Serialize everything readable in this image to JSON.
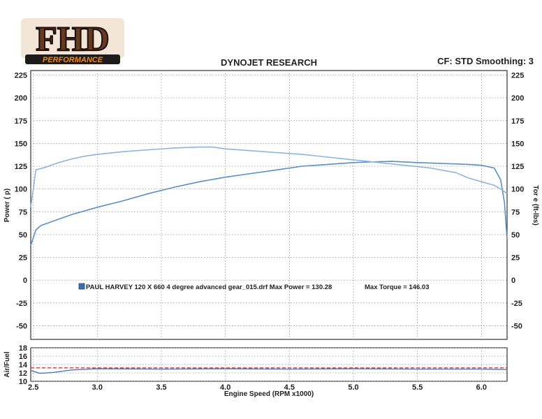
{
  "logo": {
    "main": "FHD",
    "sub": "PERFORMANCE"
  },
  "header": {
    "title": "DYNOJET RESEARCH",
    "settings": "CF: STD  Smoothing: 3"
  },
  "colors": {
    "power": "#5b8ec4",
    "torque": "#8fb4dc",
    "afr": "#4a7ab8",
    "afr_target": "#d23c3c",
    "grid": "#999999",
    "frame": "#333333"
  },
  "chart_data": [
    {
      "type": "line",
      "title": "DYNOJET RESEARCH",
      "xlabel": "",
      "ylabel_left": "Power (    p)",
      "ylabel_right": "Tor   e (ft-lbs)",
      "xlim": [
        2.48,
        6.2
      ],
      "ylim": [
        -65,
        230
      ],
      "y_ticks": [
        225,
        200,
        175,
        150,
        125,
        100,
        75,
        50,
        25,
        0,
        -25,
        -50
      ],
      "x_ticks_grid": [
        2.5,
        3.0,
        3.5,
        4.0,
        4.5,
        5.0,
        5.5,
        6.0
      ],
      "grid": true,
      "legend": {
        "text": "PAUL HARVEY 120 X 660 4 degree advanced gear_015.drf Max Power = 130.28",
        "max_torque": "Max Torque = 146.03"
      },
      "series": [
        {
          "role": "power",
          "x": [
            2.48,
            2.52,
            2.56,
            2.6,
            2.7,
            2.8,
            2.9,
            3.0,
            3.2,
            3.4,
            3.6,
            3.8,
            4.0,
            4.2,
            4.4,
            4.6,
            4.8,
            5.0,
            5.2,
            5.3,
            5.5,
            5.7,
            5.9,
            6.0,
            6.1,
            6.15,
            6.18,
            6.2
          ],
          "y": [
            38,
            55,
            60,
            62,
            67,
            72,
            76,
            80,
            87,
            95,
            102,
            108,
            113,
            117,
            121,
            125,
            127,
            129,
            130,
            130.28,
            129,
            128,
            127,
            126,
            123,
            110,
            85,
            45
          ]
        },
        {
          "role": "torque",
          "x": [
            2.48,
            2.5,
            2.52,
            2.6,
            2.7,
            2.8,
            2.9,
            3.0,
            3.2,
            3.4,
            3.6,
            3.8,
            3.9,
            4.0,
            4.2,
            4.4,
            4.6,
            4.8,
            5.0,
            5.2,
            5.4,
            5.6,
            5.8,
            5.9,
            6.0,
            6.1,
            6.15,
            6.2
          ],
          "y": [
            80,
            100,
            121,
            124,
            129,
            133,
            136,
            138,
            141,
            143,
            145,
            146,
            146.03,
            144,
            142,
            140,
            138,
            135,
            132,
            129,
            126,
            123,
            118,
            112,
            108,
            104,
            100,
            95
          ]
        }
      ]
    },
    {
      "type": "line",
      "xlabel": "Engine Speed (RPM x1000)",
      "ylabel": "Air/Fuel",
      "xlim": [
        2.48,
        6.2
      ],
      "ylim": [
        10,
        18
      ],
      "y_ticks": [
        18,
        16,
        14,
        12,
        10
      ],
      "x_ticks": [
        2.5,
        3.0,
        3.5,
        4.0,
        4.5,
        5.0,
        5.5,
        6.0
      ],
      "x_tick_labels": [
        "2.5",
        "3.0",
        "3.5",
        "4.0",
        "4.5",
        "5.0",
        "5.5",
        "6.0"
      ],
      "series": [
        {
          "role": "afr",
          "x": [
            2.48,
            2.55,
            2.65,
            2.8,
            3.0,
            3.5,
            4.0,
            4.5,
            5.0,
            5.5,
            6.0,
            6.2
          ],
          "y": [
            12.6,
            11.9,
            12.1,
            12.7,
            13.0,
            12.9,
            13.0,
            12.9,
            13.0,
            12.9,
            12.9,
            12.8
          ]
        },
        {
          "role": "afr_target",
          "x": [
            2.48,
            6.2
          ],
          "y": [
            13.2,
            13.2
          ]
        }
      ]
    }
  ]
}
